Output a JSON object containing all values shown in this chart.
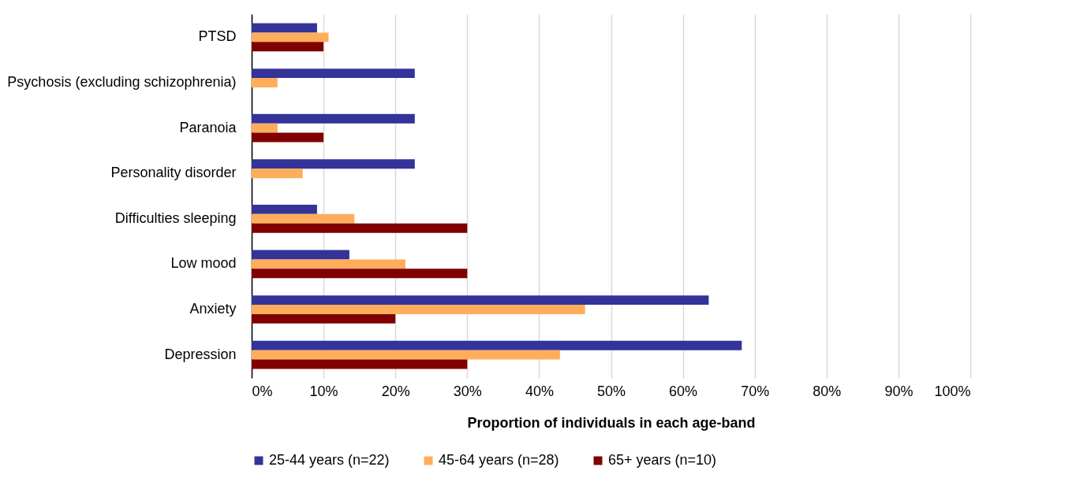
{
  "chart_data": {
    "type": "bar",
    "orientation": "horizontal",
    "xlabel": "Proportion of individuals in each age-band",
    "categories": [
      "PTSD",
      "Psychosis (excluding schizophrenia)",
      "Paranoia",
      "Personality disorder",
      "Difficulties sleeping",
      "Low mood",
      "Anxiety",
      "Depression"
    ],
    "series": [
      {
        "name": "25-44 years (n=22)",
        "color": "#333399",
        "values": [
          9.1,
          22.7,
          22.7,
          22.7,
          9.1,
          13.6,
          63.6,
          68.2
        ]
      },
      {
        "name": "45-64 years (n=28)",
        "color": "#ffad5b",
        "values": [
          10.7,
          3.6,
          3.6,
          7.1,
          14.3,
          21.4,
          46.4,
          42.9
        ]
      },
      {
        "name": "65+ years (n=10)",
        "color": "#800000",
        "values": [
          10,
          0,
          10,
          0,
          30,
          30,
          20,
          30
        ]
      }
    ],
    "xlim": [
      0,
      100
    ],
    "xticks": [
      {
        "value": 0,
        "label": "0%"
      },
      {
        "value": 10,
        "label": "10%"
      },
      {
        "value": 20,
        "label": "20%"
      },
      {
        "value": 30,
        "label": "30%"
      },
      {
        "value": 40,
        "label": "40%"
      },
      {
        "value": 50,
        "label": "50%"
      },
      {
        "value": 60,
        "label": "60%"
      },
      {
        "value": 70,
        "label": "70%"
      },
      {
        "value": 80,
        "label": "80%"
      },
      {
        "value": 90,
        "label": "90%"
      },
      {
        "value": 100,
        "label": "100%"
      }
    ],
    "grid": "x",
    "legend": "bottom"
  }
}
